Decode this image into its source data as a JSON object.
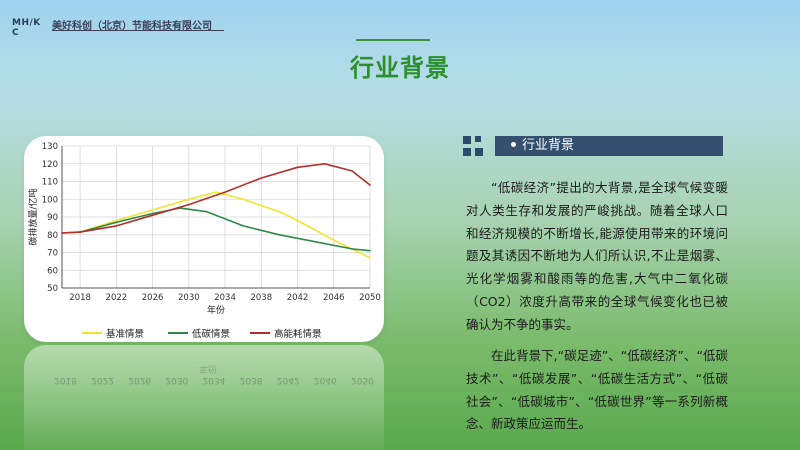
{
  "logo": {
    "text": "MH/K\nC"
  },
  "company": {
    "name": "美好科创（北京）节能科技有限公司"
  },
  "page": {
    "title": "行业背景"
  },
  "section": {
    "heading": "行业背景"
  },
  "paragraphs": [
    "“低碳经济”提出的大背景,是全球气候变暖对人类生存和发展的严峻挑战。随着全球人口和经济规模的不断增长,能源使用带来的环境问题及其诱因不断地为人们所认识,不止是烟雾、光化学烟雾和酸雨等的危害,大气中二氧化碳（CO2）浓度升高带来的全球气候变化也已被确认为不争的事实。",
    "在此背景下,“碳足迹”、“低碳经济”、“低碳技术”、“低碳发展”、“低碳生活方式”、“低碳社会”、“低碳城市”、“低碳世界”等一系列新概念、新政策应运而生。"
  ],
  "colors": {
    "title": "#2c8f2c",
    "section_bar": "#34506e",
    "baseline": "#f2e531",
    "lowcarbon": "#2f8a4a",
    "highenergy": "#b3302a"
  },
  "chart_data": {
    "type": "line",
    "xlabel": "年份",
    "ylabel": "碳排放量/亿吨",
    "xlim": [
      2016,
      2050
    ],
    "ylim": [
      50,
      130
    ],
    "xticks": [
      2018,
      2022,
      2026,
      2030,
      2034,
      2038,
      2042,
      2046,
      2050
    ],
    "yticks": [
      50,
      60,
      70,
      80,
      90,
      100,
      110,
      120,
      130
    ],
    "grid": true,
    "legend_position": "bottom",
    "series": [
      {
        "name": "基准情景",
        "color": "#f2e531",
        "x": [
          2016,
          2018,
          2022,
          2026,
          2030,
          2033,
          2036,
          2040,
          2042,
          2046,
          2050
        ],
        "y": [
          81,
          81.5,
          88,
          94,
          100,
          104,
          100,
          93,
          88,
          77,
          67
        ]
      },
      {
        "name": "低碳情景",
        "color": "#2f8a4a",
        "x": [
          2016,
          2018,
          2022,
          2026,
          2029,
          2032,
          2036,
          2040,
          2044,
          2048,
          2050
        ],
        "y": [
          81,
          81.5,
          87,
          92,
          95,
          93,
          85,
          80,
          76,
          72,
          71
        ]
      },
      {
        "name": "高能耗情景",
        "color": "#b3302a",
        "x": [
          2016,
          2018,
          2022,
          2026,
          2030,
          2034,
          2038,
          2042,
          2045,
          2048,
          2050
        ],
        "y": [
          81,
          81.5,
          85,
          91,
          97,
          104,
          112,
          118,
          120,
          116,
          108
        ]
      }
    ]
  }
}
